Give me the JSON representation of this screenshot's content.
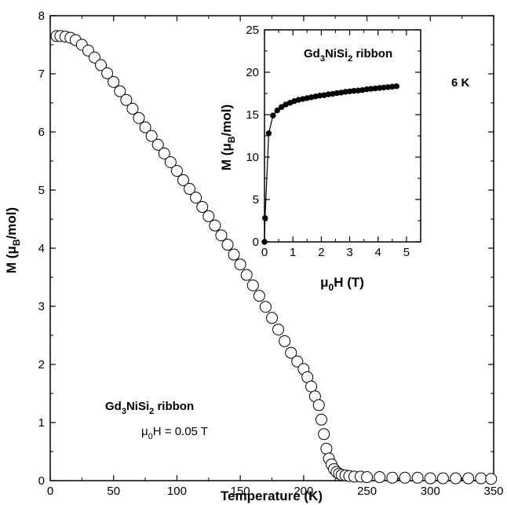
{
  "chart_data": [
    {
      "type": "scatter",
      "title": "",
      "xlabel": "Temperature (K)",
      "ylabel": "M (μB/mol)",
      "xlim": [
        0,
        350
      ],
      "ylim": [
        0,
        8
      ],
      "xticks": [
        "0",
        "50",
        "100",
        "150",
        "200",
        "250",
        "300",
        "350"
      ],
      "yticks": [
        "0",
        "1",
        "2",
        "3",
        "4",
        "5",
        "6",
        "7",
        "8"
      ],
      "grid": false,
      "marker": "open-circle",
      "annotations": [
        {
          "id": "sample",
          "text_main": "Gd",
          "sub1": "3",
          "text_mid": "NiSi",
          "sub2": "2",
          "text_end": " ribbon"
        },
        {
          "id": "field",
          "pre": "μ",
          "sub": "0",
          "post": "H = 0.05 T"
        }
      ],
      "series": [
        {
          "x": [
            5,
            8,
            12,
            16,
            20,
            25,
            30,
            35,
            40,
            45,
            50,
            55,
            60,
            65,
            70,
            75,
            80,
            85,
            90,
            95,
            100,
            105,
            110,
            115,
            120,
            125,
            130,
            135,
            140,
            145,
            150,
            155,
            160,
            165,
            170,
            175,
            180,
            185,
            190,
            195,
            200,
            203,
            206,
            209,
            212,
            214,
            216,
            218,
            220,
            222,
            224,
            226,
            228,
            230,
            233,
            236,
            240,
            245,
            250,
            260,
            270,
            280,
            290,
            300,
            310,
            320,
            330,
            340,
            348
          ],
          "values": [
            7.65,
            7.65,
            7.64,
            7.62,
            7.58,
            7.5,
            7.4,
            7.28,
            7.15,
            7.01,
            6.86,
            6.7,
            6.55,
            6.4,
            6.24,
            6.08,
            5.93,
            5.78,
            5.63,
            5.48,
            5.33,
            5.17,
            5.02,
            4.87,
            4.71,
            4.55,
            4.39,
            4.22,
            4.06,
            3.89,
            3.72,
            3.54,
            3.36,
            3.18,
            2.99,
            2.8,
            2.6,
            2.4,
            2.2,
            2.05,
            1.92,
            1.78,
            1.62,
            1.45,
            1.3,
            1.05,
            0.8,
            0.55,
            0.38,
            0.28,
            0.2,
            0.15,
            0.12,
            0.1,
            0.09,
            0.08,
            0.07,
            0.07,
            0.06,
            0.06,
            0.05,
            0.05,
            0.05,
            0.04,
            0.04,
            0.04,
            0.04,
            0.04,
            0.03
          ]
        }
      ]
    },
    {
      "type": "line",
      "title": "",
      "xlabel": "μ0H (T)",
      "ylabel": "M (μB/mol)",
      "xlim": [
        0,
        5.5
      ],
      "ylim": [
        0,
        25
      ],
      "xticks": [
        "0",
        "1",
        "2",
        "3",
        "4",
        "5"
      ],
      "yticks": [
        "0",
        "5",
        "10",
        "15",
        "20",
        "25"
      ],
      "grid": false,
      "marker": "filled-circle",
      "annotations": [
        {
          "id": "sample",
          "text_main": "Gd",
          "sub1": "3",
          "text_mid": "NiSi",
          "sub2": "2",
          "text_end": " ribbon"
        },
        {
          "id": "temp",
          "text": "6 K"
        }
      ],
      "series": [
        {
          "name": "6 K",
          "x": [
            0,
            0.02,
            0.15,
            0.3,
            0.45,
            0.6,
            0.75,
            0.9,
            1.05,
            1.2,
            1.35,
            1.5,
            1.65,
            1.8,
            1.95,
            2.1,
            2.25,
            2.4,
            2.55,
            2.7,
            2.85,
            3.0,
            3.15,
            3.3,
            3.45,
            3.6,
            3.75,
            3.9,
            4.05,
            4.2,
            4.35,
            4.5,
            4.65
          ],
          "values": [
            0,
            2.8,
            12.8,
            14.9,
            15.5,
            15.9,
            16.2,
            16.4,
            16.6,
            16.75,
            16.85,
            16.95,
            17.05,
            17.15,
            17.25,
            17.3,
            17.4,
            17.45,
            17.55,
            17.6,
            17.7,
            17.75,
            17.8,
            17.85,
            17.9,
            18.0,
            18.05,
            18.1,
            18.15,
            18.2,
            18.25,
            18.3,
            18.35
          ]
        }
      ]
    }
  ]
}
